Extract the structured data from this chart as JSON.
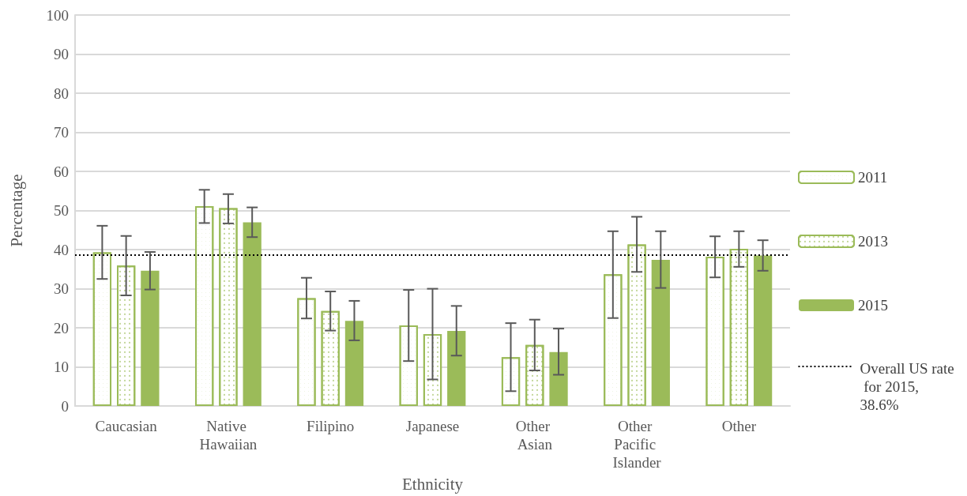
{
  "chart_data": {
    "type": "bar",
    "xlabel": "Ethnicity",
    "ylabel": "Percentage",
    "categories": [
      "Caucasian",
      "Native Hawaiian",
      "Filipino",
      "Japanese",
      "Other Asian",
      "Other Pacific Islander",
      "Other"
    ],
    "series": [
      {
        "name": "2011",
        "color": "#9bbb59",
        "values": [
          39.3,
          51.1,
          27.6,
          20.6,
          12.5,
          33.7,
          38.2
        ],
        "errors": [
          [
            32.5,
            46.1
          ],
          [
            46.8,
            55.3
          ],
          [
            22.4,
            32.8
          ],
          [
            11.5,
            29.7
          ],
          [
            3.8,
            21.2
          ],
          [
            22.5,
            44.7
          ],
          [
            32.9,
            43.4
          ]
        ]
      },
      {
        "name": "2013",
        "color": "#9bbb59",
        "values": [
          35.9,
          50.6,
          24.3,
          18.4,
          15.6,
          41.3,
          40.2
        ],
        "errors": [
          [
            28.3,
            43.5
          ],
          [
            46.7,
            54.2
          ],
          [
            19.3,
            29.3
          ],
          [
            6.8,
            30.0
          ],
          [
            9.1,
            22.1
          ],
          [
            34.3,
            48.4
          ],
          [
            35.6,
            44.7
          ]
        ]
      },
      {
        "name": "2015",
        "color": "#9bbb59",
        "values": [
          34.6,
          47.0,
          21.8,
          19.2,
          13.8,
          37.4,
          38.5
        ],
        "errors": [
          [
            29.8,
            39.4
          ],
          [
            43.2,
            50.8
          ],
          [
            16.8,
            26.9
          ],
          [
            12.9,
            25.6
          ],
          [
            8.0,
            19.8
          ],
          [
            30.2,
            44.7
          ],
          [
            34.6,
            42.4
          ]
        ]
      }
    ],
    "ylim": [
      0,
      100
    ],
    "yticks": [
      0,
      10,
      20,
      30,
      40,
      50,
      60,
      70,
      80,
      90,
      100
    ],
    "grid": "y",
    "legend": "right",
    "ref_lines": [
      {
        "axis": "y",
        "value": 38.6,
        "label": "Overall US rate for 2015, 38.6%",
        "color": "#000000",
        "line_style": "dotted"
      }
    ]
  }
}
